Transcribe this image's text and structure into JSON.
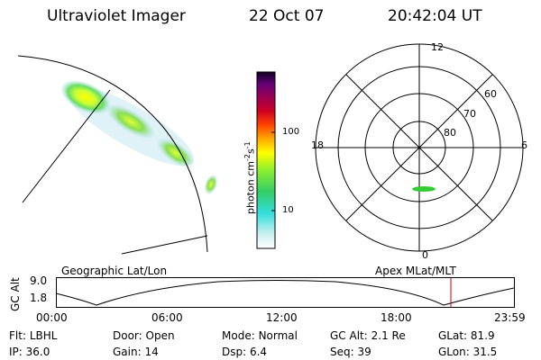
{
  "header": {
    "title": "Ultraviolet Imager",
    "date": "22 Oct 07",
    "time": "20:42:04 UT"
  },
  "colorbar": {
    "unit_label": "photon cm",
    "unit_exp1": "-2",
    "unit_s": "s",
    "unit_exp2": "-1",
    "tick_100": "100",
    "tick_10": "10"
  },
  "polar": {
    "label_top": "12",
    "label_bottom": "0",
    "label_left": "18",
    "label_right": "6",
    "ring_60": "60",
    "ring_70": "70",
    "ring_80": "80"
  },
  "panel": {
    "left_label": "Geographic Lat/Lon",
    "right_label": "Apex MLat/MLT",
    "y_axis_label": "GC Alt",
    "y_top": "9.0",
    "y_bottom": "1.8",
    "x_ticks": [
      "00:00",
      "06:00",
      "12:00",
      "18:00",
      "23:59"
    ]
  },
  "footer": {
    "row1": [
      {
        "label": "Flt:",
        "value": "LBHL"
      },
      {
        "label": "Door:",
        "value": "Open"
      },
      {
        "label": "Mode:",
        "value": "Normal"
      },
      {
        "label": "GC Alt:",
        "value": "2.1 Re"
      },
      {
        "label": "GLat:",
        "value": "81.9"
      }
    ],
    "row2": [
      {
        "label": "IP:",
        "value": "36.0"
      },
      {
        "label": "Gain:",
        "value": "14"
      },
      {
        "label": "Dsp:",
        "value": "6.4"
      },
      {
        "label": "Seq:",
        "value": "39"
      },
      {
        "label": "GLon:",
        "value": "31.5"
      }
    ]
  },
  "colors": {
    "marker": "#cc0000",
    "aurora_green": "#33cc33"
  }
}
